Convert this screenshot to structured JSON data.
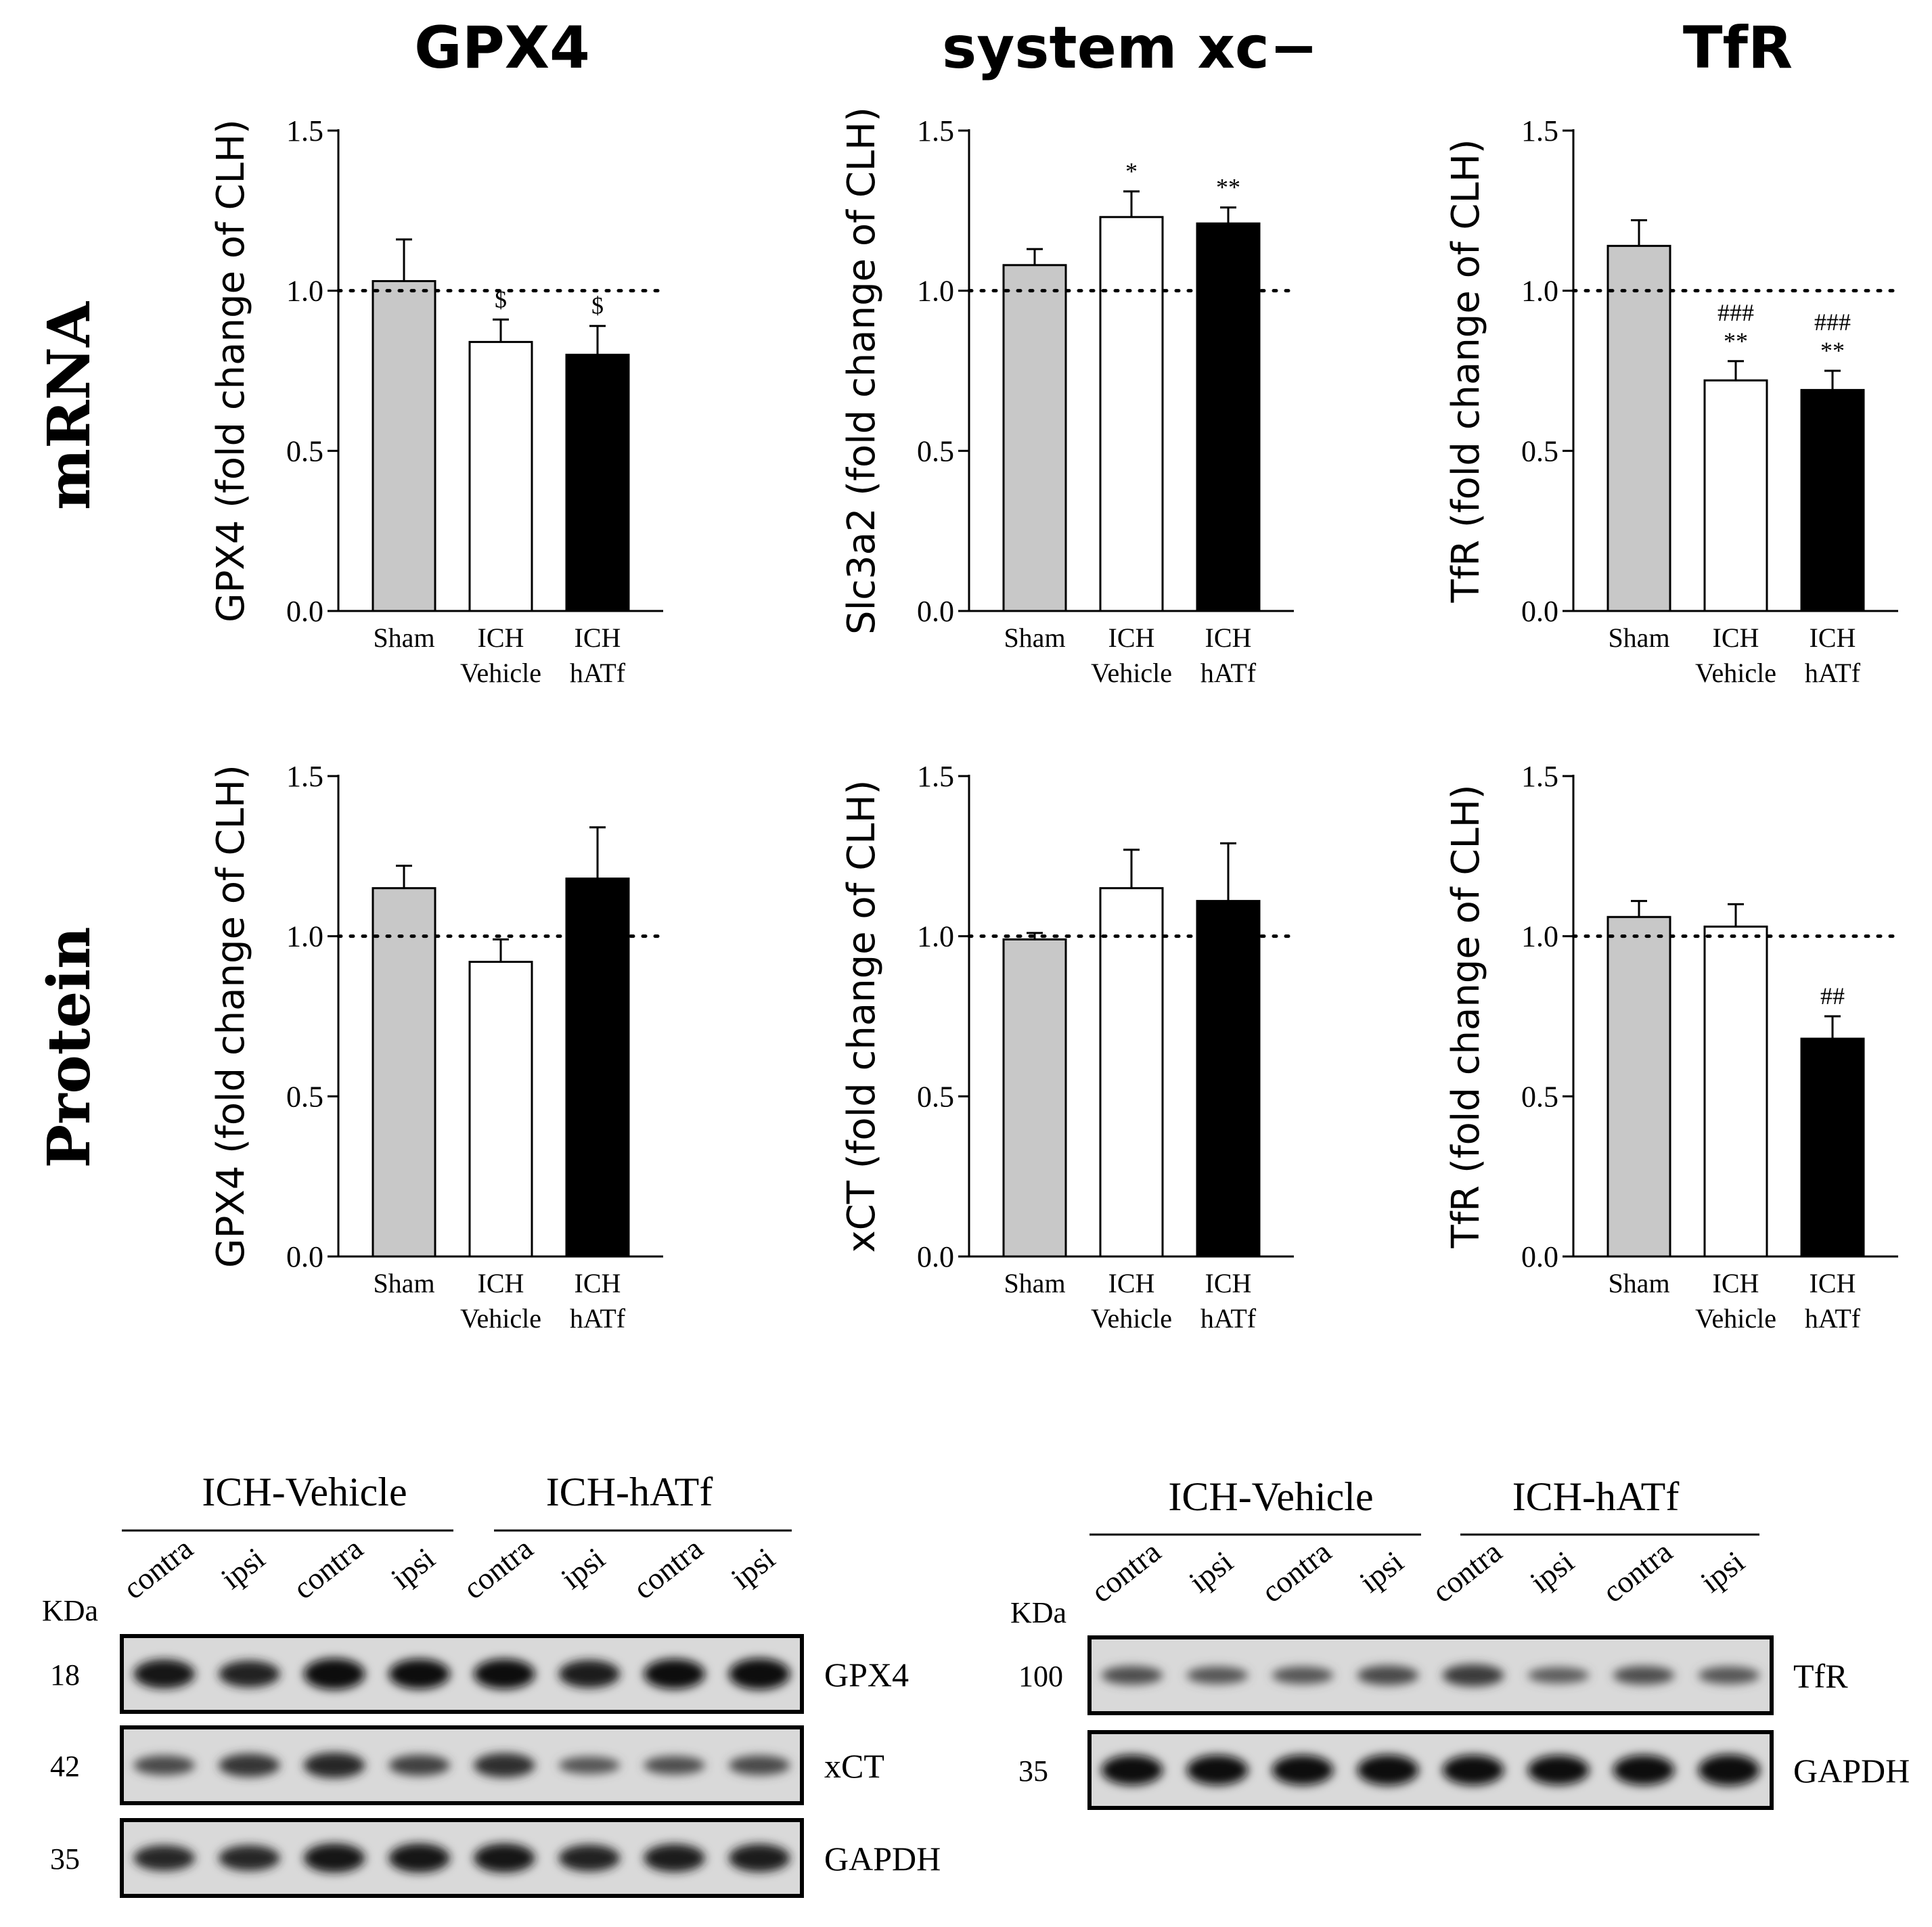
{
  "column_titles": [
    "GPX4",
    "system xc−",
    "TfR"
  ],
  "row_labels": [
    "mRNA",
    "Protein"
  ],
  "chart_data": [
    {
      "type": "bar",
      "row": "mRNA",
      "column": "GPX4",
      "ylabel": "GPX4 (fold change of CLH)",
      "ylim": [
        0,
        1.5
      ],
      "yticks": [
        "0.0",
        "0.5",
        "1.0",
        "1.5"
      ],
      "reference_line": 1.0,
      "categories": [
        [
          "Sham"
        ],
        [
          "ICH",
          "Vehicle"
        ],
        [
          "ICH",
          "hATf"
        ]
      ],
      "values": [
        1.03,
        0.84,
        0.8
      ],
      "errors": [
        0.13,
        0.07,
        0.09
      ],
      "fills": [
        "#c8c8c8",
        "#ffffff",
        "#000000"
      ],
      "annotations": [
        [],
        [
          "$"
        ],
        [
          "$"
        ]
      ]
    },
    {
      "type": "bar",
      "row": "mRNA",
      "column": "system xc−",
      "ylabel": "Slc3a2 (fold change of CLH)",
      "ylim": [
        0,
        1.5
      ],
      "yticks": [
        "0.0",
        "0.5",
        "1.0",
        "1.5"
      ],
      "reference_line": 1.0,
      "categories": [
        [
          "Sham"
        ],
        [
          "ICH",
          "Vehicle"
        ],
        [
          "ICH",
          "hATf"
        ]
      ],
      "values": [
        1.08,
        1.23,
        1.21
      ],
      "errors": [
        0.05,
        0.08,
        0.05
      ],
      "fills": [
        "#c8c8c8",
        "#ffffff",
        "#000000"
      ],
      "annotations": [
        [],
        [
          "*"
        ],
        [
          "**"
        ]
      ]
    },
    {
      "type": "bar",
      "row": "mRNA",
      "column": "TfR",
      "ylabel": "TfR (fold change of CLH)",
      "ylim": [
        0,
        1.5
      ],
      "yticks": [
        "0.0",
        "0.5",
        "1.0",
        "1.5"
      ],
      "reference_line": 1.0,
      "categories": [
        [
          "Sham"
        ],
        [
          "ICH",
          "Vehicle"
        ],
        [
          "ICH",
          "hATf"
        ]
      ],
      "values": [
        1.14,
        0.72,
        0.69
      ],
      "errors": [
        0.08,
        0.06,
        0.06
      ],
      "fills": [
        "#c8c8c8",
        "#ffffff",
        "#000000"
      ],
      "annotations": [
        [],
        [
          "###",
          "**"
        ],
        [
          "###",
          "**"
        ]
      ]
    },
    {
      "type": "bar",
      "row": "Protein",
      "column": "GPX4",
      "ylabel": "GPX4 (fold change of CLH)",
      "ylim": [
        0,
        1.5
      ],
      "yticks": [
        "0.0",
        "0.5",
        "1.0",
        "1.5"
      ],
      "reference_line": 1.0,
      "categories": [
        [
          "Sham"
        ],
        [
          "ICH",
          "Vehicle"
        ],
        [
          "ICH",
          "hATf"
        ]
      ],
      "values": [
        1.15,
        0.92,
        1.18
      ],
      "errors": [
        0.07,
        0.07,
        0.16
      ],
      "fills": [
        "#c8c8c8",
        "#ffffff",
        "#000000"
      ],
      "annotations": [
        [],
        [],
        []
      ]
    },
    {
      "type": "bar",
      "row": "Protein",
      "column": "system xc−",
      "ylabel": "xCT (fold change of CLH)",
      "ylim": [
        0,
        1.5
      ],
      "yticks": [
        "0.0",
        "0.5",
        "1.0",
        "1.5"
      ],
      "reference_line": 1.0,
      "categories": [
        [
          "Sham"
        ],
        [
          "ICH",
          "Vehicle"
        ],
        [
          "ICH",
          "hATf"
        ]
      ],
      "values": [
        0.99,
        1.15,
        1.11
      ],
      "errors": [
        0.02,
        0.12,
        0.18
      ],
      "fills": [
        "#c8c8c8",
        "#ffffff",
        "#000000"
      ],
      "annotations": [
        [],
        [],
        []
      ]
    },
    {
      "type": "bar",
      "row": "Protein",
      "column": "TfR",
      "ylabel": "TfR (fold change of CLH)",
      "ylim": [
        0,
        1.5
      ],
      "yticks": [
        "0.0",
        "0.5",
        "1.0",
        "1.5"
      ],
      "reference_line": 1.0,
      "categories": [
        [
          "Sham"
        ],
        [
          "ICH",
          "Vehicle"
        ],
        [
          "ICH",
          "hATf"
        ]
      ],
      "values": [
        1.06,
        1.03,
        0.68
      ],
      "errors": [
        0.05,
        0.07,
        0.07
      ],
      "fills": [
        "#c8c8c8",
        "#ffffff",
        "#000000"
      ],
      "annotations": [
        [],
        [],
        [
          "##"
        ]
      ]
    }
  ],
  "blots": [
    {
      "groups": [
        "ICH-Vehicle",
        "ICH-hATf"
      ],
      "lanes": [
        "contra",
        "ipsi",
        "contra",
        "ipsi",
        "contra",
        "ipsi",
        "contra",
        "ipsi"
      ],
      "kda_label": "KDa",
      "rows": [
        {
          "protein": "GPX4",
          "kda": "18",
          "intensity": [
            0.85,
            0.75,
            0.95,
            0.9,
            0.9,
            0.8,
            0.9,
            0.95
          ]
        },
        {
          "protein": "xCT",
          "kda": "42",
          "intensity": [
            0.45,
            0.6,
            0.7,
            0.5,
            0.65,
            0.35,
            0.4,
            0.45
          ]
        },
        {
          "protein": "GAPDH",
          "kda": "35",
          "intensity": [
            0.7,
            0.7,
            0.85,
            0.85,
            0.85,
            0.75,
            0.8,
            0.8
          ]
        }
      ]
    },
    {
      "groups": [
        "ICH-Vehicle",
        "ICH-hATf"
      ],
      "lanes": [
        "contra",
        "ipsi",
        "contra",
        "ipsi",
        "contra",
        "ipsi",
        "contra",
        "ipsi"
      ],
      "kda_label": "KDa",
      "rows": [
        {
          "protein": "TfR",
          "kda": "100",
          "intensity": [
            0.4,
            0.35,
            0.35,
            0.45,
            0.55,
            0.3,
            0.4,
            0.35
          ]
        },
        {
          "protein": "GAPDH",
          "kda": "35",
          "intensity": [
            0.9,
            0.9,
            0.9,
            0.92,
            0.9,
            0.88,
            0.9,
            0.95
          ]
        }
      ]
    }
  ]
}
